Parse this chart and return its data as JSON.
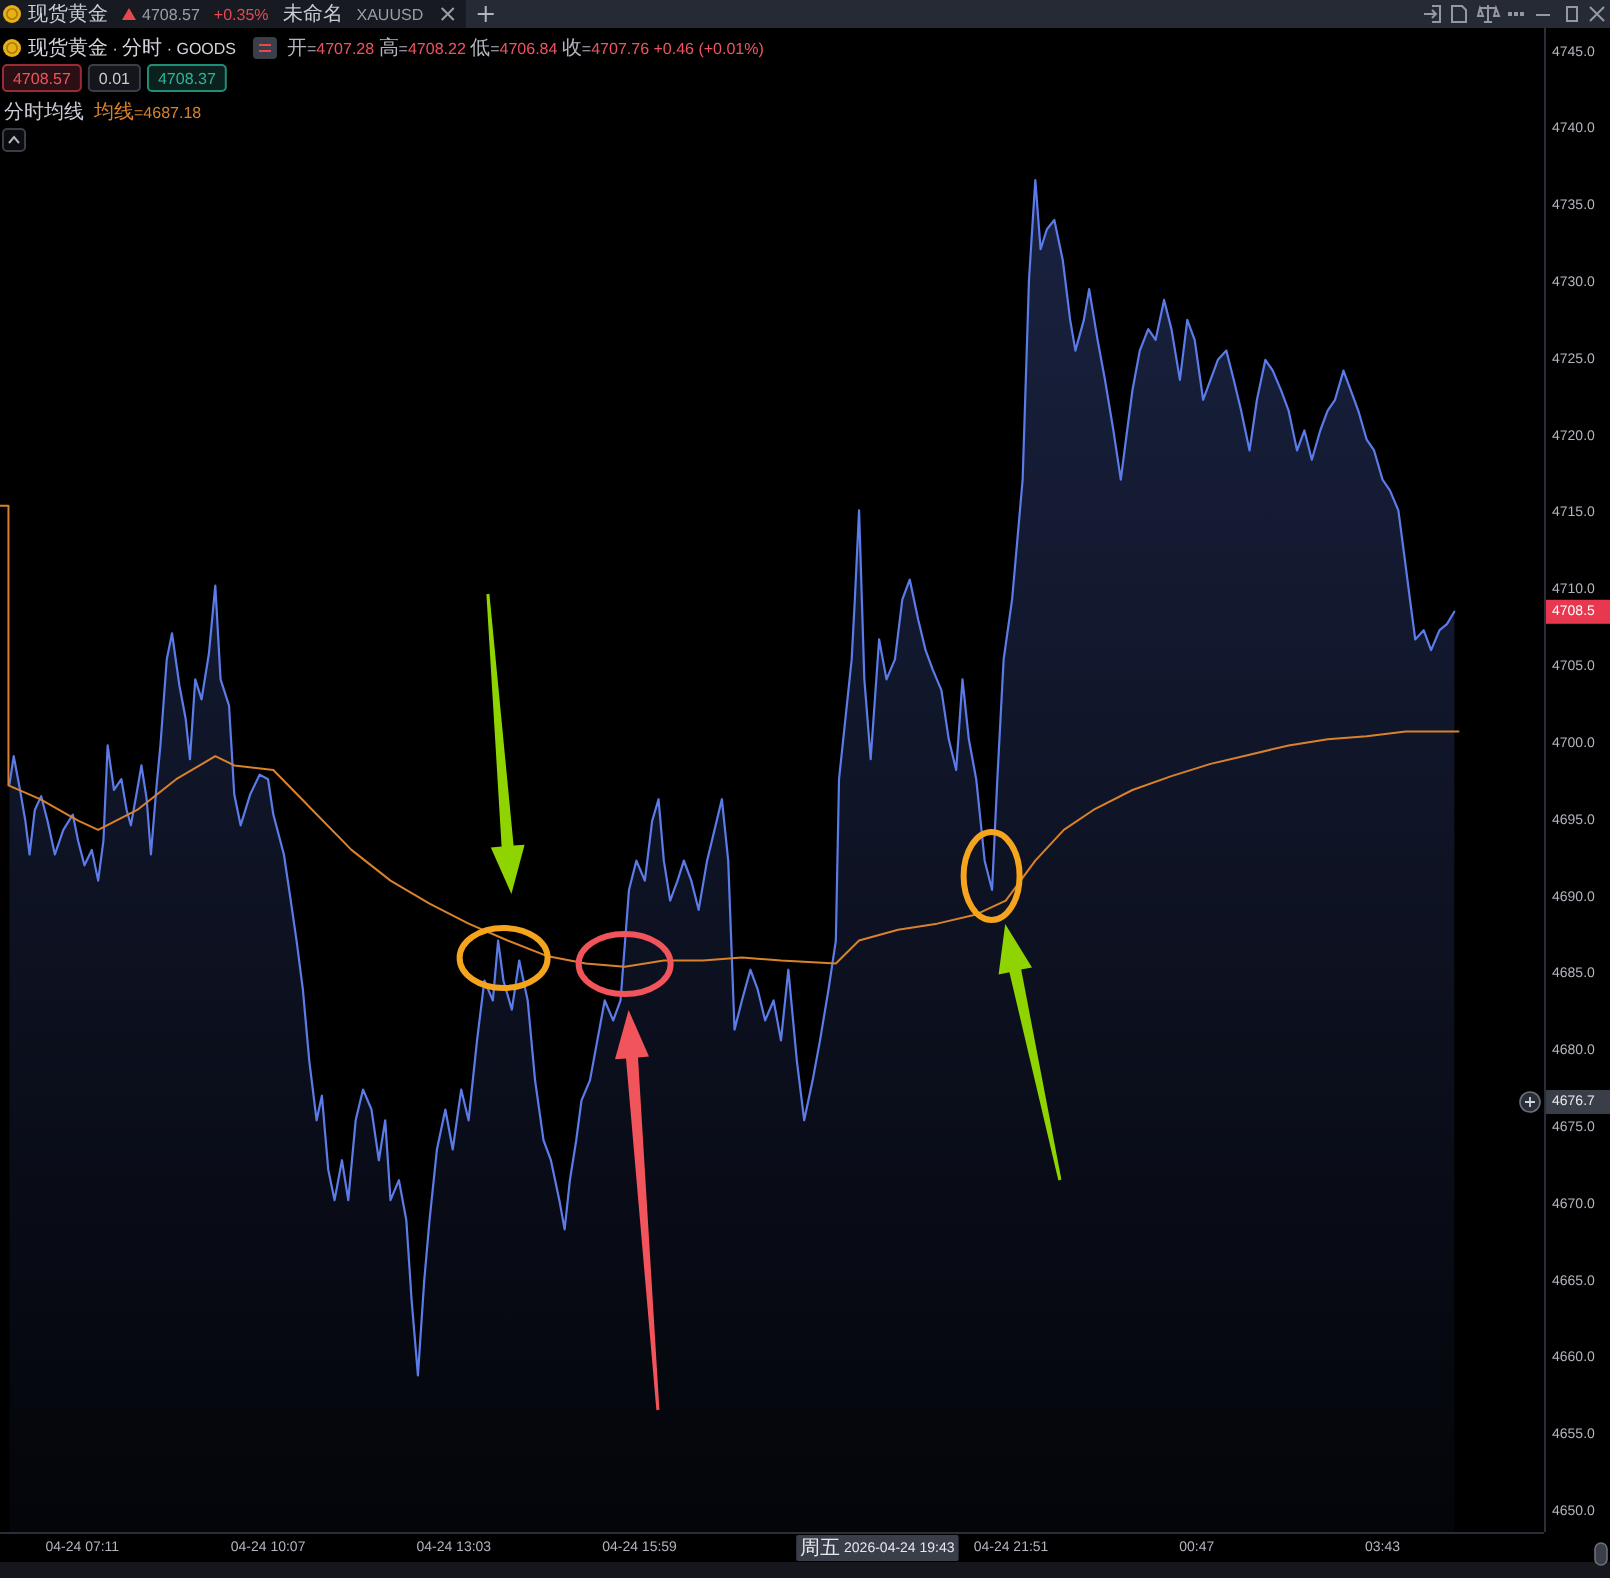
{
  "chart_data": {
    "type": "area",
    "title": "现货黄金 · 分时 · GOODS",
    "subtitle": "开=4707.28 高=4708.22 低=4706.84 收=4707.76 +0.46 (+0.01%)",
    "annotations": [
      "现货黄金",
      "4708.57",
      "+0.35%",
      "未命名",
      "XAUUSD",
      "4708.57",
      "0.01",
      "4708.37",
      "均线=4687.18",
      "周五 2026-04-24 19:43",
      "4676.7",
      "4708.5"
    ],
    "xlim": [
      "2026-04-24T05:53",
      "2026-04-25T06:16"
    ],
    "xticks": [
      {
        "value": "2026-04-24T07:11",
        "label": "04-24 07:11"
      },
      {
        "value": "2026-04-24T10:07",
        "label": "04-24 10:07"
      },
      {
        "value": "2026-04-24T13:03",
        "label": "04-24 13:03"
      },
      {
        "value": "2026-04-24T15:59",
        "label": "04-24 15:59"
      },
      {
        "value": "2026-04-24T21:51",
        "label": "04-24 21:51"
      },
      {
        "value": "2026-04-25T00:47",
        "label": "00:47"
      },
      {
        "value": "2026-04-25T03:43",
        "label": "03:43"
      }
    ],
    "ylim": [
      4648.7,
      4746.6
    ],
    "yticks": [
      {
        "value": 4650,
        "label": "4650.0"
      },
      {
        "value": 4655,
        "label": "4655.0"
      },
      {
        "value": 4660,
        "label": "4660.0"
      },
      {
        "value": 4665,
        "label": "4665.0"
      },
      {
        "value": 4670,
        "label": "4670.0"
      },
      {
        "value": 4675,
        "label": "4675.0"
      },
      {
        "value": 4680,
        "label": "4680.0"
      },
      {
        "value": 4685,
        "label": "4685.0"
      },
      {
        "value": 4690,
        "label": "4690.0"
      },
      {
        "value": 4695,
        "label": "4695.0"
      },
      {
        "value": 4700,
        "label": "4700.0"
      },
      {
        "value": 4705,
        "label": "4705.0"
      },
      {
        "value": 4710,
        "label": "4710.0"
      },
      {
        "value": 4715,
        "label": "4715.0"
      },
      {
        "value": 4720,
        "label": "4720.0"
      },
      {
        "value": 4725,
        "label": "4725.0"
      },
      {
        "value": 4730,
        "label": "4730.0"
      },
      {
        "value": 4735,
        "label": "4735.0"
      },
      {
        "value": 4740,
        "label": "4740.0"
      },
      {
        "value": 4745,
        "label": "4745.0"
      }
    ],
    "legend": "top left",
    "x": [
      "2026-04-24T06:02",
      "2026-04-24T06:06",
      "2026-04-24T06:12",
      "2026-04-24T06:17",
      "2026-04-24T06:21",
      "2026-04-24T06:26",
      "2026-04-24T06:32",
      "2026-04-24T06:38",
      "2026-04-24T06:45",
      "2026-04-24T06:53",
      "2026-04-24T07:02",
      "2026-04-24T07:07",
      "2026-04-24T07:13",
      "2026-04-24T07:20",
      "2026-04-24T07:26",
      "2026-04-24T07:31",
      "2026-04-24T07:35",
      "2026-04-24T07:41",
      "2026-04-24T07:48",
      "2026-04-24T07:53",
      "2026-04-24T07:57",
      "2026-04-24T08:03",
      "2026-04-24T08:07",
      "2026-04-24T08:12",
      "2026-04-24T08:16",
      "2026-04-24T08:21",
      "2026-04-24T08:25",
      "2026-04-24T08:31",
      "2026-04-24T08:36",
      "2026-04-24T08:43",
      "2026-04-24T08:49",
      "2026-04-24T08:53",
      "2026-04-24T08:58",
      "2026-04-24T09:04",
      "2026-04-24T09:11",
      "2026-04-24T09:17",
      "2026-04-24T09:22",
      "2026-04-24T09:30",
      "2026-04-24T09:35",
      "2026-04-24T09:41",
      "2026-04-24T09:50",
      "2026-04-24T09:59",
      "2026-04-24T10:07",
      "2026-04-24T10:12",
      "2026-04-24T10:22",
      "2026-04-24T10:27",
      "2026-04-24T10:34",
      "2026-04-24T10:40",
      "2026-04-24T10:46",
      "2026-04-24T10:53",
      "2026-04-24T10:58",
      "2026-04-24T11:04",
      "2026-04-24T11:10",
      "2026-04-24T11:17",
      "2026-04-24T11:23",
      "2026-04-24T11:30",
      "2026-04-24T11:37",
      "2026-04-24T11:45",
      "2026-04-24T11:52",
      "2026-04-24T11:58",
      "2026-04-24T12:03",
      "2026-04-24T12:11",
      "2026-04-24T12:18",
      "2026-04-24T12:23",
      "2026-04-24T12:29",
      "2026-04-24T12:35",
      "2026-04-24T12:40",
      "2026-04-24T12:47",
      "2026-04-24T12:55",
      "2026-04-24T13:02",
      "2026-04-24T13:10",
      "2026-04-24T13:17",
      "2026-04-24T13:25",
      "2026-04-24T13:32",
      "2026-04-24T13:40",
      "2026-04-24T13:45",
      "2026-04-24T13:50",
      "2026-04-24T13:58",
      "2026-04-24T14:05",
      "2026-04-24T14:13",
      "2026-04-24T14:20",
      "2026-04-24T14:28",
      "2026-04-24T14:35",
      "2026-04-24T14:43",
      "2026-04-24T14:48",
      "2026-04-24T14:53",
      "2026-04-24T14:59",
      "2026-04-24T15:04",
      "2026-04-24T15:12",
      "2026-04-24T15:19",
      "2026-04-24T15:26",
      "2026-04-24T15:34",
      "2026-04-24T15:41",
      "2026-04-24T15:49",
      "2026-04-24T15:56",
      "2026-04-24T16:04",
      "2026-04-24T16:11",
      "2026-04-24T16:17",
      "2026-04-24T16:22",
      "2026-04-24T16:28",
      "2026-04-24T16:35",
      "2026-04-24T16:41",
      "2026-04-24T16:48",
      "2026-04-24T16:55",
      "2026-04-24T17:03",
      "2026-04-24T17:10",
      "2026-04-24T17:17",
      "2026-04-24T17:23",
      "2026-04-24T17:29",
      "2026-04-24T17:36",
      "2026-04-24T17:44",
      "2026-04-24T17:51",
      "2026-04-24T17:58",
      "2026-04-24T18:06",
      "2026-04-24T18:13",
      "2026-04-24T18:20",
      "2026-04-24T18:28",
      "2026-04-24T18:35",
      "2026-04-24T18:43",
      "2026-04-24T18:50",
      "2026-04-24T18:58",
      "2026-04-24T19:05",
      "2026-04-24T19:08",
      "2026-04-24T19:14",
      "2026-04-24T19:20",
      "2026-04-24T19:23",
      "2026-04-24T19:27",
      "2026-04-24T19:32",
      "2026-04-24T19:38",
      "2026-04-24T19:46",
      "2026-04-24T19:53",
      "2026-04-24T20:01",
      "2026-04-24T20:08",
      "2026-04-24T20:15",
      "2026-04-24T20:23",
      "2026-04-24T20:30",
      "2026-04-24T20:37",
      "2026-04-24T20:45",
      "2026-04-24T20:52",
      "2026-04-24T20:59",
      "2026-04-24T21:05",
      "2026-04-24T21:11",
      "2026-04-24T21:18",
      "2026-04-24T21:26",
      "2026-04-24T21:33",
      "2026-04-24T21:38",
      "2026-04-24T21:44",
      "2026-04-24T21:52",
      "2026-04-24T21:57",
      "2026-04-24T22:02",
      "2026-04-24T22:08",
      "2026-04-24T22:14",
      "2026-04-24T22:19",
      "2026-04-24T22:25",
      "2026-04-24T22:32",
      "2026-04-24T22:40",
      "2026-04-24T22:47",
      "2026-04-24T22:52",
      "2026-04-24T23:00",
      "2026-04-24T23:05",
      "2026-04-24T23:13",
      "2026-04-24T23:20",
      "2026-04-24T23:28",
      "2026-04-24T23:35",
      "2026-04-24T23:41",
      "2026-04-24T23:46",
      "2026-04-24T23:53",
      "2026-04-25T00:01",
      "2026-04-25T00:08",
      "2026-04-25T00:16",
      "2026-04-25T00:23",
      "2026-04-25T00:31",
      "2026-04-25T00:38",
      "2026-04-25T00:45",
      "2026-04-25T00:53",
      "2026-04-25T01:00",
      "2026-04-25T01:07",
      "2026-04-25T01:15",
      "2026-04-25T01:22",
      "2026-04-25T01:29",
      "2026-04-25T01:37",
      "2026-04-25T01:44",
      "2026-04-25T01:52",
      "2026-04-25T01:59",
      "2026-04-25T02:07",
      "2026-04-25T02:14",
      "2026-04-25T02:22",
      "2026-04-25T02:29",
      "2026-04-25T02:36",
      "2026-04-25T02:44",
      "2026-04-25T02:51",
      "2026-04-25T02:58",
      "2026-04-25T03:06",
      "2026-04-25T03:13",
      "2026-04-25T03:20",
      "2026-04-25T03:28",
      "2026-04-25T03:35",
      "2026-04-25T03:43",
      "2026-04-25T03:50",
      "2026-04-25T03:58",
      "2026-04-25T04:03",
      "2026-04-25T04:09",
      "2026-04-25T04:14",
      "2026-04-25T04:22",
      "2026-04-25T04:29",
      "2026-04-25T04:37",
      "2026-04-25T04:44",
      "2026-04-25T04:51"
    ],
    "series": [
      {
        "color": "#5b7be8",
        "values": [
          4697.4,
          4699.2,
          4697.0,
          4695.0,
          4692.8,
          4695.7,
          4696.6,
          4695.0,
          4692.8,
          4694.4,
          4695.4,
          4693.7,
          4692.1,
          4693.1,
          4691.1,
          4693.7,
          4699.9,
          4697.0,
          4697.7,
          4695.7,
          4694.7,
          4697.0,
          4698.6,
          4696.4,
          4692.8,
          4697.0,
          4699.9,
          4705.5,
          4707.2,
          4703.8,
          4701.6,
          4699.0,
          4704.2,
          4702.9,
          4705.9,
          4710.3,
          4704.2,
          4702.5,
          4696.7,
          4694.7,
          4696.7,
          4698.0,
          4697.7,
          4695.4,
          4692.8,
          4690.5,
          4687.2,
          4684.0,
          4679.4,
          4675.5,
          4677.1,
          4672.3,
          4670.3,
          4672.9,
          4670.3,
          4675.5,
          4677.5,
          4676.2,
          4672.9,
          4675.5,
          4670.3,
          4671.6,
          4669.0,
          4663.8,
          4658.9,
          4665.1,
          4669.0,
          4673.6,
          4676.2,
          4673.6,
          4677.5,
          4675.5,
          4680.7,
          4684.6,
          4683.3,
          4687.2,
          4684.6,
          4682.7,
          4685.9,
          4683.3,
          4678.1,
          4674.2,
          4672.9,
          4670.3,
          4668.4,
          4671.6,
          4674.2,
          4676.8,
          4678.1,
          4680.7,
          4683.3,
          4682.0,
          4683.3,
          4690.5,
          4692.4,
          4691.1,
          4695.0,
          4696.4,
          4692.4,
          4689.8,
          4691.1,
          4692.4,
          4691.1,
          4689.2,
          4692.4,
          4694.4,
          4696.4,
          4692.4,
          4681.4,
          4683.3,
          4685.3,
          4684.0,
          4682.0,
          4683.3,
          4680.7,
          4685.3,
          4679.4,
          4675.5,
          4678.1,
          4680.7,
          4684.0,
          4687.2,
          4697.7,
          4701.6,
          4705.5,
          4709.4,
          4715.2,
          4704.2,
          4699.0,
          4706.8,
          4704.2,
          4705.5,
          4709.4,
          4710.7,
          4708.1,
          4706.1,
          4704.8,
          4703.5,
          4700.3,
          4698.3,
          4704.2,
          4700.3,
          4697.7,
          4692.4,
          4690.5,
          4697.7,
          4705.5,
          4709.4,
          4713.3,
          4717.2,
          4730.2,
          4736.7,
          4732.2,
          4733.5,
          4734.1,
          4731.5,
          4727.6,
          4725.6,
          4727.6,
          4729.6,
          4726.3,
          4723.7,
          4720.4,
          4717.2,
          4720.4,
          4723.0,
          4725.6,
          4727.0,
          4726.3,
          4728.9,
          4727.0,
          4723.7,
          4727.6,
          4726.3,
          4722.4,
          4723.7,
          4725.0,
          4725.6,
          4723.7,
          4721.7,
          4719.1,
          4722.4,
          4725.0,
          4724.3,
          4723.0,
          4721.7,
          4719.1,
          4720.4,
          4718.5,
          4720.4,
          4721.7,
          4722.4,
          4724.3,
          4723.0,
          4721.7,
          4719.8,
          4719.1,
          4717.2,
          4716.5,
          4715.2,
          4712.6,
          4709.4,
          4706.8,
          4707.4,
          4706.1,
          4707.4,
          4707.8,
          4708.6
        ]
      },
      {
        "name": "分时均线",
        "type": "line",
        "color": "#d9822b",
        "x": [
          "2026-04-24T05:53",
          "2026-04-24T06:01",
          "2026-04-24T06:01",
          "2026-04-24T06:31",
          "2026-04-24T07:07",
          "2026-04-24T07:26",
          "2026-04-24T08:03",
          "2026-04-24T08:40",
          "2026-04-24T09:17",
          "2026-04-24T09:35",
          "2026-04-24T10:12",
          "2026-04-24T10:49",
          "2026-04-24T11:26",
          "2026-04-24T12:03",
          "2026-04-24T12:40",
          "2026-04-24T13:17",
          "2026-04-24T13:54",
          "2026-04-24T14:31",
          "2026-04-24T15:08",
          "2026-04-24T15:45",
          "2026-04-24T16:22",
          "2026-04-24T16:59",
          "2026-04-24T17:36",
          "2026-04-24T18:13",
          "2026-04-24T19:05",
          "2026-04-24T19:27",
          "2026-04-24T20:04",
          "2026-04-24T20:41",
          "2026-04-24T21:18",
          "2026-04-24T21:46",
          "2026-04-24T22:14",
          "2026-04-24T22:41",
          "2026-04-24T23:09",
          "2026-04-24T23:46",
          "2026-04-25T00:23",
          "2026-04-25T01:00",
          "2026-04-25T01:37",
          "2026-04-25T02:14",
          "2026-04-25T02:51",
          "2026-04-25T03:28",
          "2026-04-25T04:05",
          "2026-04-25T04:55"
        ],
        "values": [
          4715.5,
          4715.5,
          4697.3,
          4696.4,
          4695.0,
          4694.4,
          4695.7,
          4697.7,
          4699.2,
          4698.6,
          4698.3,
          4695.7,
          4693.1,
          4691.1,
          4689.6,
          4688.3,
          4687.2,
          4686.2,
          4685.7,
          4685.5,
          4685.9,
          4685.9,
          4686.1,
          4685.9,
          4685.7,
          4687.2,
          4687.9,
          4688.3,
          4688.9,
          4689.8,
          4692.4,
          4694.4,
          4695.7,
          4697.0,
          4697.9,
          4698.7,
          4699.3,
          4699.9,
          4700.3,
          4700.5,
          4700.8,
          4700.8
        ]
      }
    ]
  }
}
